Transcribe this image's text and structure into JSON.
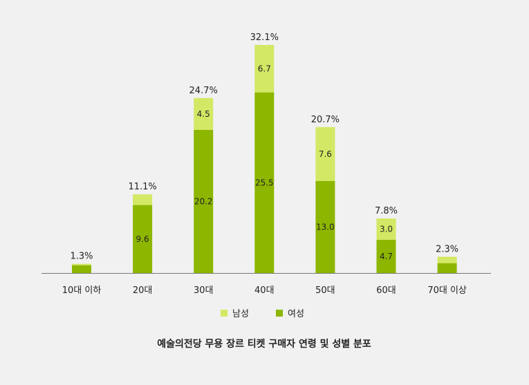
{
  "chart_data": {
    "type": "bar",
    "stacked": true,
    "categories": [
      "10대 이하",
      "20대",
      "30대",
      "40대",
      "50대",
      "60대",
      "70대 이상"
    ],
    "series": [
      {
        "name": "여성",
        "values": [
          1.1,
          9.6,
          20.2,
          25.5,
          13.0,
          4.7,
          1.4
        ],
        "labels": [
          "",
          "9.6",
          "20.2",
          "25.5",
          "13.0",
          "4.7",
          ""
        ],
        "color": "#8db600"
      },
      {
        "name": "남성",
        "values": [
          0.2,
          1.5,
          4.5,
          6.7,
          7.6,
          3.0,
          0.9
        ],
        "labels": [
          "",
          "",
          "4.5",
          "6.7",
          "7.6",
          "3.0",
          ""
        ],
        "color": "#d3e864"
      }
    ],
    "totals": [
      "1.3%",
      "11.1%",
      "24.7%",
      "32.1%",
      "20.7%",
      "7.8%",
      "2.3%"
    ],
    "legend": [
      "남성",
      "여성"
    ],
    "title": "예술의전당 무용 장르 티켓 구매자 연령 및 성별 분포",
    "ylim": [
      0,
      32.1
    ],
    "grid": false,
    "legend_position": "bottom"
  }
}
